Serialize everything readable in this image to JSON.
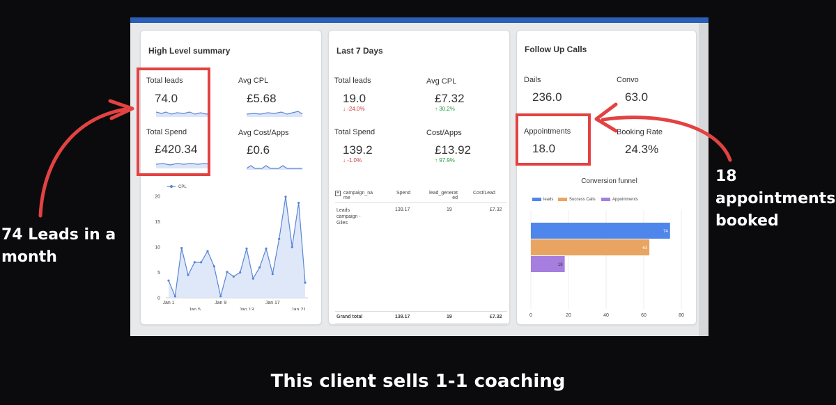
{
  "high_level": {
    "title": "High Level summary",
    "total_leads_label": "Total leads",
    "total_leads_value": "74.0",
    "avg_cpl_label": "Avg CPL",
    "avg_cpl_value": "£5.68",
    "total_spend_label": "Total Spend",
    "total_spend_value": "£420.34",
    "avg_cost_apps_label": "Avg Cost/Apps",
    "avg_cost_apps_value": "£0.6"
  },
  "last7": {
    "title": "Last 7 Days",
    "total_leads_label": "Total leads",
    "total_leads_value": "19.0",
    "total_leads_delta": "↓ -24.0%",
    "avg_cpl_label": "Avg CPL",
    "avg_cpl_value": "£7.32",
    "avg_cpl_delta": "↑ 30.2%",
    "total_spend_label": "Total Spend",
    "total_spend_value": "139.2",
    "total_spend_delta": "↓ -1.0%",
    "cost_apps_label": "Cost/Apps",
    "cost_apps_value": "£13.92",
    "cost_apps_delta": "↑ 97.9%",
    "table": {
      "expand_icon": "+",
      "headers": [
        "campaign_na me",
        "Spend",
        "lead_generat ed",
        "Cost/Lead"
      ],
      "rows": [
        [
          "Leads campaign - Giles",
          "139.17",
          "19",
          "£7.32"
        ]
      ],
      "total": [
        "Grand total",
        "139.17",
        "19",
        "£7.32"
      ]
    }
  },
  "followup": {
    "title": "Follow Up Calls",
    "dails_label": "Dails",
    "dails_value": "236.0",
    "convo_label": "Convo",
    "convo_value": "63.0",
    "appointments_label": "Appointments",
    "appointments_value": "18.0",
    "booking_rate_label": "Booking Rate",
    "booking_rate_value": "24.3%",
    "funnel_title": "Conversion funnel"
  },
  "chart_data": [
    {
      "type": "area",
      "series": [
        {
          "name": "CPL",
          "values": [
            3.4,
            0.3,
            9.8,
            4.5,
            7,
            7,
            9.2,
            6.2,
            0.3,
            5.1,
            4.2,
            5,
            9.7,
            3.8,
            6,
            9.7,
            4.7,
            11.6,
            19.9,
            10,
            18.7,
            3
          ]
        }
      ],
      "x": [
        "Jan 1",
        "Jan 2",
        "Jan 3",
        "Jan 4",
        "Jan 5",
        "Jan 6",
        "Jan 7",
        "Jan 8",
        "Jan 9",
        "Jan 10",
        "Jan 11",
        "Jan 12",
        "Jan 13",
        "Jan 14",
        "Jan 15",
        "Jan 16",
        "Jan 17",
        "Jan 18",
        "Jan 19",
        "Jan 20",
        "Jan 21",
        "Jan 22"
      ],
      "x_tick_labels": [
        "Jan 1",
        "Jan 5",
        "Jan 9",
        "Jan 13",
        "Jan 17",
        "Jan 21"
      ],
      "y_ticks": [
        "0",
        "5",
        "10",
        "15",
        "20"
      ],
      "ylim": [
        0,
        20
      ],
      "legend": "top-left",
      "color": "#5b84d6"
    },
    {
      "type": "bar",
      "orientation": "horizontal",
      "categories": [
        "leads",
        "Success Calls",
        "Appointments"
      ],
      "values": [
        74,
        63,
        18
      ],
      "colors": [
        "#4f86ec",
        "#e8a460",
        "#a57ee0"
      ],
      "x_ticks": [
        "0",
        "20",
        "40",
        "60",
        "80"
      ],
      "xlim": [
        0,
        80
      ],
      "legend": "top-left"
    }
  ],
  "annotations": {
    "left_line1": "74 Leads in a",
    "left_line2": "month",
    "right_line1": "18",
    "right_line2": "appointments",
    "right_line3": "booked"
  },
  "caption": "This client sells 1-1 coaching",
  "colors": {
    "highlight": "#e34242",
    "accent": "#2b5fb8",
    "background": "#0b0b0d"
  }
}
